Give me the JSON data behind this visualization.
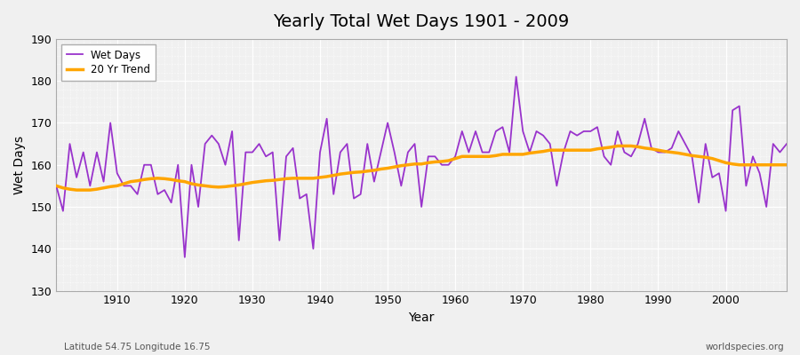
{
  "title": "Yearly Total Wet Days 1901 - 2009",
  "xlabel": "Year",
  "ylabel": "Wet Days",
  "subtitle_left": "Latitude 54.75 Longitude 16.75",
  "subtitle_right": "worldspecies.org",
  "ylim": [
    130,
    190
  ],
  "xlim": [
    1901,
    2009
  ],
  "yticks": [
    130,
    140,
    150,
    160,
    170,
    180,
    190
  ],
  "xticks": [
    1910,
    1920,
    1930,
    1940,
    1950,
    1960,
    1970,
    1980,
    1990,
    2000
  ],
  "wet_days_color": "#9933cc",
  "trend_color": "#ffa500",
  "bg_color": "#f0f0f0",
  "plot_bg_color": "#f0f0f0",
  "wet_days": {
    "years": [
      1901,
      1902,
      1903,
      1904,
      1905,
      1906,
      1907,
      1908,
      1909,
      1910,
      1911,
      1912,
      1913,
      1914,
      1915,
      1916,
      1917,
      1918,
      1919,
      1920,
      1921,
      1922,
      1923,
      1924,
      1925,
      1926,
      1927,
      1928,
      1929,
      1930,
      1931,
      1932,
      1933,
      1934,
      1935,
      1936,
      1937,
      1938,
      1939,
      1940,
      1941,
      1942,
      1943,
      1944,
      1945,
      1946,
      1947,
      1948,
      1949,
      1950,
      1951,
      1952,
      1953,
      1954,
      1955,
      1956,
      1957,
      1958,
      1959,
      1960,
      1961,
      1962,
      1963,
      1964,
      1965,
      1966,
      1967,
      1968,
      1969,
      1970,
      1971,
      1972,
      1973,
      1974,
      1975,
      1976,
      1977,
      1978,
      1979,
      1980,
      1981,
      1982,
      1983,
      1984,
      1985,
      1986,
      1987,
      1988,
      1989,
      1990,
      1991,
      1992,
      1993,
      1994,
      1995,
      1996,
      1997,
      1998,
      1999,
      2000,
      2001,
      2002,
      2003,
      2004,
      2005,
      2006,
      2007,
      2008,
      2009
    ],
    "values": [
      155,
      149,
      165,
      157,
      163,
      155,
      163,
      156,
      170,
      158,
      155,
      155,
      153,
      160,
      160,
      153,
      154,
      151,
      160,
      138,
      160,
      150,
      165,
      167,
      165,
      160,
      168,
      142,
      163,
      163,
      165,
      162,
      163,
      142,
      162,
      164,
      152,
      153,
      140,
      163,
      171,
      153,
      163,
      165,
      152,
      153,
      165,
      156,
      163,
      170,
      163,
      155,
      163,
      165,
      150,
      162,
      162,
      160,
      160,
      162,
      168,
      163,
      168,
      163,
      163,
      168,
      169,
      163,
      181,
      168,
      163,
      168,
      167,
      165,
      155,
      163,
      168,
      167,
      168,
      168,
      169,
      162,
      160,
      168,
      163,
      162,
      165,
      171,
      164,
      163,
      163,
      164,
      168,
      165,
      162,
      151,
      165,
      157,
      158,
      149,
      173,
      174,
      155,
      162,
      158,
      150,
      165,
      163,
      165
    ]
  },
  "trend": {
    "years": [
      1901,
      1902,
      1903,
      1904,
      1905,
      1906,
      1907,
      1908,
      1909,
      1910,
      1911,
      1912,
      1913,
      1914,
      1915,
      1916,
      1917,
      1918,
      1919,
      1920,
      1921,
      1922,
      1923,
      1924,
      1925,
      1926,
      1927,
      1928,
      1929,
      1930,
      1931,
      1932,
      1933,
      1934,
      1935,
      1936,
      1937,
      1938,
      1939,
      1940,
      1941,
      1942,
      1943,
      1944,
      1945,
      1946,
      1947,
      1948,
      1949,
      1950,
      1951,
      1952,
      1953,
      1954,
      1955,
      1956,
      1957,
      1958,
      1959,
      1960,
      1961,
      1962,
      1963,
      1964,
      1965,
      1966,
      1967,
      1968,
      1969,
      1970,
      1971,
      1972,
      1973,
      1974,
      1975,
      1976,
      1977,
      1978,
      1979,
      1980,
      1981,
      1982,
      1983,
      1984,
      1985,
      1986,
      1987,
      1988,
      1989,
      1990,
      1991,
      1992,
      1993,
      1994,
      1995,
      1996,
      1997,
      1998,
      1999,
      2000,
      2001,
      2002,
      2003,
      2004,
      2005,
      2006,
      2007,
      2008,
      2009
    ],
    "values": [
      155.0,
      154.5,
      154.2,
      154.0,
      154.0,
      154.0,
      154.2,
      154.5,
      154.8,
      155.0,
      155.5,
      156.0,
      156.2,
      156.5,
      156.7,
      156.8,
      156.7,
      156.5,
      156.2,
      156.0,
      155.5,
      155.2,
      155.0,
      154.8,
      154.7,
      154.8,
      155.0,
      155.2,
      155.5,
      155.8,
      156.0,
      156.2,
      156.3,
      156.5,
      156.7,
      156.8,
      156.8,
      156.8,
      156.8,
      157.0,
      157.2,
      157.5,
      157.8,
      158.0,
      158.2,
      158.3,
      158.5,
      158.7,
      159.0,
      159.2,
      159.5,
      159.8,
      160.0,
      160.2,
      160.2,
      160.5,
      160.7,
      160.8,
      161.0,
      161.5,
      162.0,
      162.0,
      162.0,
      162.0,
      162.0,
      162.2,
      162.5,
      162.5,
      162.5,
      162.5,
      162.8,
      163.0,
      163.2,
      163.5,
      163.5,
      163.5,
      163.5,
      163.5,
      163.5,
      163.5,
      163.8,
      164.0,
      164.2,
      164.5,
      164.5,
      164.5,
      164.3,
      164.0,
      163.8,
      163.5,
      163.2,
      163.0,
      162.8,
      162.5,
      162.2,
      162.0,
      161.8,
      161.5,
      161.0,
      160.5,
      160.2,
      160.0,
      160.0,
      160.0,
      160.0,
      160.0,
      160.0,
      160.0,
      160.0
    ]
  }
}
